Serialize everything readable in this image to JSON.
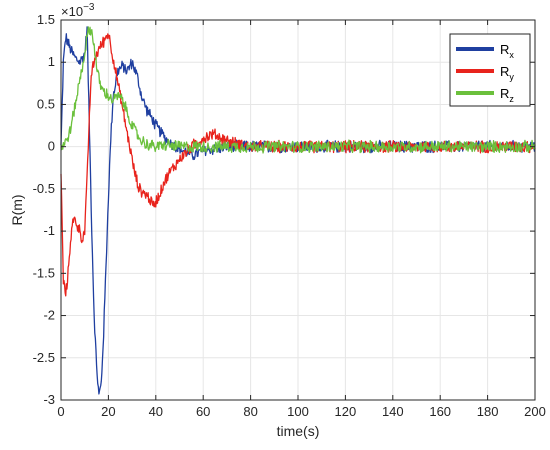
{
  "chart_data": {
    "type": "line",
    "xlabel": "time(s)",
    "ylabel": "R(m)",
    "exponent_label": "×10",
    "exponent_power": "−3",
    "xlim": [
      0,
      200
    ],
    "ylim": [
      -3,
      1.5
    ],
    "xticks": [
      "0",
      "20",
      "40",
      "60",
      "80",
      "100",
      "120",
      "140",
      "160",
      "180",
      "200"
    ],
    "yticks": [
      "1.5",
      "1",
      "0.5",
      "0",
      "-0.5",
      "-1",
      "-1.5",
      "-2",
      "-2.5",
      "-3"
    ],
    "grid": true,
    "legend_position": "top-right",
    "noise_amplitude_steady": 0.08,
    "series": [
      {
        "name": "R",
        "sub": "x",
        "color": "#1f3fa0",
        "points": [
          [
            0,
            0
          ],
          [
            1,
            1.0
          ],
          [
            2,
            1.3
          ],
          [
            4,
            1.15
          ],
          [
            6,
            1.05
          ],
          [
            8,
            1.0
          ],
          [
            10,
            1.1
          ],
          [
            11,
            1.4
          ],
          [
            12,
            0.2
          ],
          [
            13,
            -1.0
          ],
          [
            14,
            -2.0
          ],
          [
            15,
            -2.6
          ],
          [
            16,
            -2.95
          ],
          [
            17,
            -2.8
          ],
          [
            18,
            -2.2
          ],
          [
            19,
            -1.4
          ],
          [
            20,
            -0.6
          ],
          [
            21,
            0.1
          ],
          [
            22,
            0.6
          ],
          [
            24,
            0.9
          ],
          [
            26,
            0.95
          ],
          [
            28,
            0.9
          ],
          [
            30,
            1.0
          ],
          [
            32,
            0.85
          ],
          [
            34,
            0.6
          ],
          [
            36,
            0.45
          ],
          [
            38,
            0.35
          ],
          [
            40,
            0.25
          ],
          [
            44,
            0.1
          ],
          [
            48,
            0.0
          ],
          [
            52,
            -0.05
          ],
          [
            56,
            -0.1
          ],
          [
            60,
            -0.05
          ],
          [
            70,
            0
          ],
          [
            200,
            0
          ]
        ]
      },
      {
        "name": "R",
        "sub": "y",
        "color": "#e8231c",
        "points": [
          [
            0,
            -0.3
          ],
          [
            1,
            -1.6
          ],
          [
            2,
            -1.75
          ],
          [
            3,
            -1.5
          ],
          [
            4,
            -1.1
          ],
          [
            5,
            -0.9
          ],
          [
            6,
            -0.85
          ],
          [
            7,
            -0.95
          ],
          [
            8,
            -1.0
          ],
          [
            9,
            -1.1
          ],
          [
            10,
            -1.0
          ],
          [
            11,
            -0.4
          ],
          [
            12,
            0.4
          ],
          [
            13,
            0.9
          ],
          [
            15,
            1.1
          ],
          [
            17,
            1.2
          ],
          [
            19,
            1.3
          ],
          [
            20,
            1.35
          ],
          [
            21,
            1.2
          ],
          [
            23,
            0.9
          ],
          [
            25,
            0.6
          ],
          [
            27,
            0.3
          ],
          [
            29,
            0.0
          ],
          [
            31,
            -0.3
          ],
          [
            33,
            -0.5
          ],
          [
            35,
            -0.55
          ],
          [
            37,
            -0.6
          ],
          [
            39,
            -0.7
          ],
          [
            41,
            -0.6
          ],
          [
            43,
            -0.45
          ],
          [
            46,
            -0.3
          ],
          [
            50,
            -0.15
          ],
          [
            55,
            0.0
          ],
          [
            60,
            0.1
          ],
          [
            64,
            0.15
          ],
          [
            68,
            0.1
          ],
          [
            72,
            0.05
          ],
          [
            80,
            0
          ],
          [
            200,
            0
          ]
        ]
      },
      {
        "name": "R",
        "sub": "z",
        "color": "#6bc03c",
        "points": [
          [
            0,
            0
          ],
          [
            2,
            0.05
          ],
          [
            4,
            0.2
          ],
          [
            6,
            0.5
          ],
          [
            8,
            0.8
          ],
          [
            10,
            1.1
          ],
          [
            11,
            1.3
          ],
          [
            12,
            1.4
          ],
          [
            13,
            1.35
          ],
          [
            14,
            1.2
          ],
          [
            15,
            0.95
          ],
          [
            16,
            0.8
          ],
          [
            17,
            0.7
          ],
          [
            18,
            0.65
          ],
          [
            20,
            0.6
          ],
          [
            22,
            0.55
          ],
          [
            24,
            0.6
          ],
          [
            26,
            0.55
          ],
          [
            28,
            0.4
          ],
          [
            30,
            0.25
          ],
          [
            33,
            0.1
          ],
          [
            36,
            0.03
          ],
          [
            40,
            0.0
          ],
          [
            45,
            0.02
          ],
          [
            50,
            0
          ],
          [
            60,
            0
          ],
          [
            70,
            0
          ],
          [
            200,
            0
          ]
        ]
      }
    ]
  }
}
